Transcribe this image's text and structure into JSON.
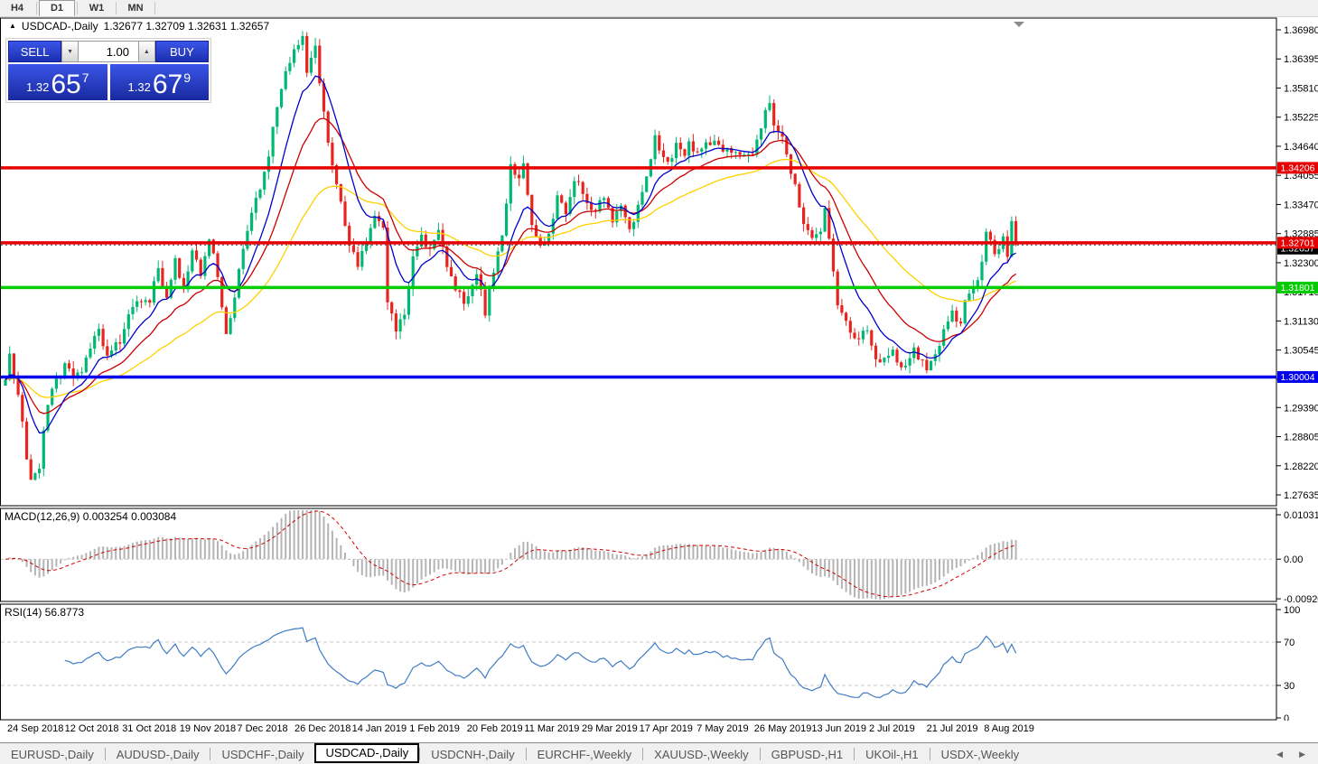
{
  "toolbar": {
    "timeframes": [
      {
        "label": "H4",
        "active": false
      },
      {
        "label": "D1",
        "active": true
      },
      {
        "label": "W1",
        "active": false
      },
      {
        "label": "MN",
        "active": false
      }
    ]
  },
  "chart_header": {
    "symbol": "USDCAD-,Daily",
    "ohlc": "1.32677 1.32709 1.32631 1.32657"
  },
  "trade_panel": {
    "sell_label": "SELL",
    "buy_label": "BUY",
    "volume": "1.00",
    "sell_price_prefix": "1.32",
    "sell_price_big": "65",
    "sell_price_sup": "7",
    "buy_price_prefix": "1.32",
    "buy_price_big": "67",
    "buy_price_sup": "9"
  },
  "panes": {
    "macd_label": "MACD(12,26,9) 0.003254 0.003084",
    "rsi_label": "RSI(14) 56.8773"
  },
  "tabs": {
    "items": [
      {
        "label": "EURUSD-,Daily"
      },
      {
        "label": "AUDUSD-,Daily"
      },
      {
        "label": "USDCHF-,Daily"
      },
      {
        "label": "USDCAD-,Daily"
      },
      {
        "label": "USDCNH-,Daily"
      },
      {
        "label": "EURCHF-,Weekly"
      },
      {
        "label": "XAUUSD-,Weekly"
      },
      {
        "label": "GBPUSD-,H1"
      },
      {
        "label": "UKOil-,H1"
      },
      {
        "label": "USDX-,Weekly"
      }
    ],
    "active_index": 3
  },
  "chart_data": {
    "type": "candlestick",
    "title": "USDCAD-,Daily",
    "ohlc_header": {
      "open": "1.32677",
      "high": "1.32709",
      "low": "1.32631",
      "close": "1.32657"
    },
    "y_tick_labels": [
      "1.36980",
      "1.36395",
      "1.35810",
      "1.35225",
      "1.34640",
      "1.34055",
      "1.33470",
      "1.32885",
      "1.32300",
      "1.31715",
      "1.31130",
      "1.30545",
      "1.29960",
      "1.29390",
      "1.28805",
      "1.28220",
      "1.27635"
    ],
    "x_tick_labels": [
      "24 Sep 2018",
      "12 Oct 2018",
      "31 Oct 2018",
      "19 Nov 2018",
      "7 Dec 2018",
      "26 Dec 2018",
      "14 Jan 2019",
      "1 Feb 2019",
      "20 Feb 2019",
      "11 Mar 2019",
      "29 Mar 2019",
      "17 Apr 2019",
      "7 May 2019",
      "26 May 2019",
      "13 Jun 2019",
      "2 Jul 2019",
      "21 Jul 2019",
      "8 Aug 2019"
    ],
    "levels": [
      {
        "value": 1.34206,
        "label": "1.34206",
        "color": "#e60000"
      },
      {
        "value": 1.32701,
        "label": "1.32701",
        "color": "#e60000"
      },
      {
        "value": 1.31801,
        "label": "1.31801",
        "color": "#00cc00"
      },
      {
        "value": 1.30004,
        "label": "1.30004",
        "color": "#0000ee"
      }
    ],
    "bid": {
      "value": 1.32657,
      "label": "1.32657",
      "color": "#000000"
    },
    "candles": {
      "count": 239,
      "up_color": "#00b873",
      "down_color": "#e8241f",
      "close_anchors": [
        [
          0,
          1.2995
        ],
        [
          1,
          1.304
        ],
        [
          3,
          1.2965
        ],
        [
          4,
          1.292
        ],
        [
          5,
          1.283
        ],
        [
          6,
          1.279
        ],
        [
          8,
          1.282
        ],
        [
          9,
          1.29
        ],
        [
          11,
          1.2975
        ],
        [
          14,
          1.303
        ],
        [
          16,
          1.2995
        ],
        [
          18,
          1.302
        ],
        [
          20,
          1.3055
        ],
        [
          22,
          1.31
        ],
        [
          24,
          1.304
        ],
        [
          27,
          1.3075
        ],
        [
          29,
          1.3125
        ],
        [
          32,
          1.316
        ],
        [
          34,
          1.315
        ],
        [
          36,
          1.322
        ],
        [
          38,
          1.316
        ],
        [
          40,
          1.323
        ],
        [
          42,
          1.318
        ],
        [
          44,
          1.325
        ],
        [
          46,
          1.321
        ],
        [
          48,
          1.328
        ],
        [
          50,
          1.32
        ],
        [
          52,
          1.309
        ],
        [
          54,
          1.315
        ],
        [
          55,
          1.322
        ],
        [
          57,
          1.33
        ],
        [
          60,
          1.338
        ],
        [
          62,
          1.345
        ],
        [
          64,
          1.354
        ],
        [
          66,
          1.362
        ],
        [
          68,
          1.365
        ],
        [
          70,
          1.3685
        ],
        [
          71,
          1.362
        ],
        [
          73,
          1.366
        ],
        [
          74,
          1.359
        ],
        [
          76,
          1.348
        ],
        [
          77,
          1.342
        ],
        [
          79,
          1.335
        ],
        [
          81,
          1.327
        ],
        [
          83,
          1.322
        ],
        [
          85,
          1.328
        ],
        [
          87,
          1.332
        ],
        [
          89,
          1.33
        ],
        [
          90,
          1.316
        ],
        [
          92,
          1.309
        ],
        [
          94,
          1.313
        ],
        [
          96,
          1.324
        ],
        [
          98,
          1.328
        ],
        [
          100,
          1.326
        ],
        [
          102,
          1.329
        ],
        [
          104,
          1.323
        ],
        [
          106,
          1.3175
        ],
        [
          108,
          1.315
        ],
        [
          111,
          1.3205
        ],
        [
          113,
          1.313
        ],
        [
          114,
          1.318
        ],
        [
          117,
          1.328
        ],
        [
          119,
          1.343
        ],
        [
          121,
          1.339
        ],
        [
          122,
          1.343
        ],
        [
          124,
          1.331
        ],
        [
          126,
          1.3255
        ],
        [
          128,
          1.329
        ],
        [
          130,
          1.336
        ],
        [
          132,
          1.333
        ],
        [
          134,
          1.34
        ],
        [
          137,
          1.335
        ],
        [
          139,
          1.3335
        ],
        [
          141,
          1.336
        ],
        [
          143,
          1.332
        ],
        [
          145,
          1.334
        ],
        [
          147,
          1.33
        ],
        [
          149,
          1.334
        ],
        [
          151,
          1.34
        ],
        [
          153,
          1.349
        ],
        [
          154,
          1.345
        ],
        [
          156,
          1.343
        ],
        [
          158,
          1.347
        ],
        [
          160,
          1.344
        ],
        [
          161,
          1.3475
        ],
        [
          163,
          1.345
        ],
        [
          165,
          1.3465
        ],
        [
          167,
          1.348
        ],
        [
          169,
          1.345
        ],
        [
          171,
          1.346
        ],
        [
          174,
          1.344
        ],
        [
          176,
          1.3455
        ],
        [
          178,
          1.35
        ],
        [
          180,
          1.3555
        ],
        [
          181,
          1.351
        ],
        [
          183,
          1.348
        ],
        [
          184,
          1.344
        ],
        [
          186,
          1.339
        ],
        [
          188,
          1.33
        ],
        [
          190,
          1.3285
        ],
        [
          192,
          1.3295
        ],
        [
          193,
          1.333
        ],
        [
          194,
          1.328
        ],
        [
          196,
          1.315
        ],
        [
          198,
          1.3105
        ],
        [
          200,
          1.308
        ],
        [
          203,
          1.309
        ],
        [
          205,
          1.304
        ],
        [
          207,
          1.303
        ],
        [
          209,
          1.3055
        ],
        [
          211,
          1.302
        ],
        [
          212,
          1.3016
        ],
        [
          214,
          1.306
        ],
        [
          216,
          1.303
        ],
        [
          217,
          1.301
        ],
        [
          219,
          1.305
        ],
        [
          221,
          1.309
        ],
        [
          223,
          1.313
        ],
        [
          225,
          1.311
        ],
        [
          226,
          1.315
        ],
        [
          228,
          1.318
        ],
        [
          230,
          1.323
        ],
        [
          231,
          1.329
        ],
        [
          233,
          1.325
        ],
        [
          235,
          1.328
        ],
        [
          236,
          1.324
        ],
        [
          237,
          1.331
        ],
        [
          238,
          1.32657
        ]
      ]
    },
    "moving_averages": [
      {
        "period": 10,
        "color": "#0000cc"
      },
      {
        "period": 20,
        "color": "#cc0000"
      },
      {
        "period": 45,
        "color": "#ffd000"
      }
    ],
    "macd": {
      "fast": 12,
      "slow": 26,
      "signal": 9,
      "current_values": [
        0.003254,
        0.003084
      ],
      "histogram_color": "#b4b4b4",
      "signal_color": "#d00000",
      "y_ticks": [
        "0.010311",
        "0.00",
        "-0.00920"
      ],
      "y_range": [
        -0.0092,
        0.010311
      ]
    },
    "rsi": {
      "period": 14,
      "value": 56.8773,
      "color": "#3f7cc4",
      "levels": [
        70,
        30
      ],
      "y_ticks": [
        "100",
        "70",
        "30",
        "0"
      ],
      "y_range": [
        0,
        100
      ]
    }
  }
}
